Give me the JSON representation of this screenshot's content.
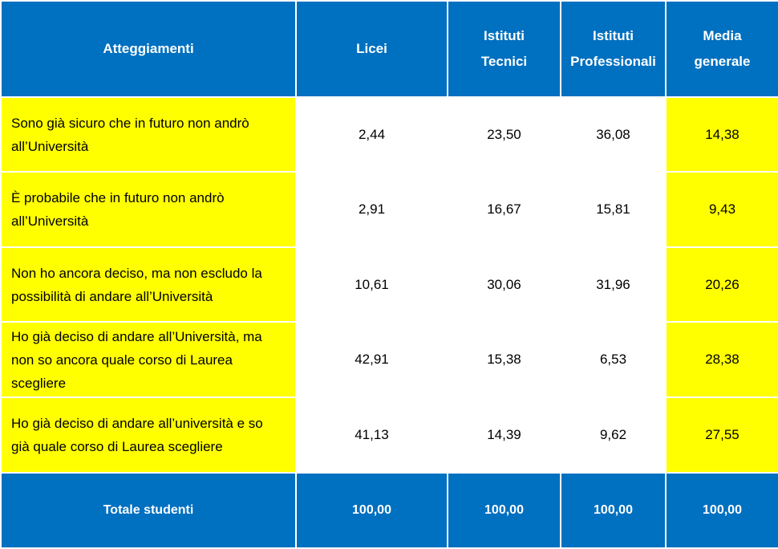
{
  "table": {
    "header": [
      "Atteggiamenti",
      "Licei",
      "Istituti Tecnici",
      "Istituti Professionali",
      "Media generale"
    ],
    "rows": [
      [
        "Sono già sicuro che in futuro non andrò all’Università",
        "2,44",
        "23,50",
        "36,08",
        "14,38"
      ],
      [
        "È probabile che in futuro non andrò all’Università",
        "2,91",
        "16,67",
        "15,81",
        "9,43"
      ],
      [
        "Non ho ancora deciso, ma non escludo la possibilità di andare all’Università",
        "10,61",
        "30,06",
        "31,96",
        "20,26"
      ],
      [
        "Ho già deciso di andare all’Università, ma non so ancora quale corso di Laurea scegliere",
        "42,91",
        "15,38",
        "6,53",
        "28,38"
      ],
      [
        "Ho già deciso di andare all’università e so già quale corso di Laurea scegliere",
        "41,13",
        "14,39",
        "9,62",
        "27,55"
      ]
    ],
    "footer": [
      "Totale studenti",
      "100,00",
      "100,00",
      "100,00",
      "100,00"
    ]
  }
}
